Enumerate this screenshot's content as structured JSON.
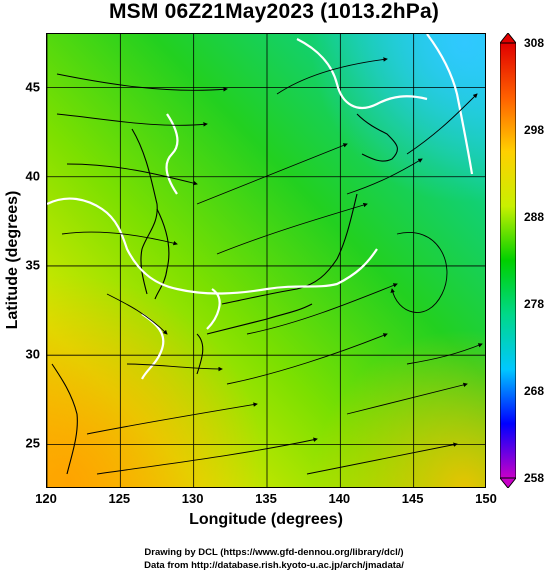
{
  "title": "MSM 06Z21May2023 (1013.2hPa)",
  "map": {
    "xlabel": "Longitude (degrees)",
    "ylabel": "Latitude  (degrees)",
    "lon_range": [
      120,
      150
    ],
    "lat_range": [
      22.5,
      48
    ],
    "x_ticks": [
      "120",
      "125",
      "130",
      "135",
      "140",
      "145",
      "150"
    ],
    "y_ticks": [
      "25",
      "30",
      "35",
      "40",
      "45"
    ],
    "grid": true
  },
  "colorbar": {
    "ticks": [
      "308",
      "298",
      "288",
      "278",
      "268",
      "258"
    ],
    "range": [
      258,
      308
    ],
    "colors": [
      "#c800c8",
      "#0000ff",
      "#00c8ff",
      "#00d88a",
      "#00d000",
      "#c8f000",
      "#ffd000",
      "#ff6000",
      "#e00000"
    ]
  },
  "credits": {
    "line1": "Drawing by DCL (https://www.gfd-dennou.org/library/dcl/)",
    "line2": "Data from http://database.rish.kyoto-u.ac.jp/arch/jmadata/"
  }
}
